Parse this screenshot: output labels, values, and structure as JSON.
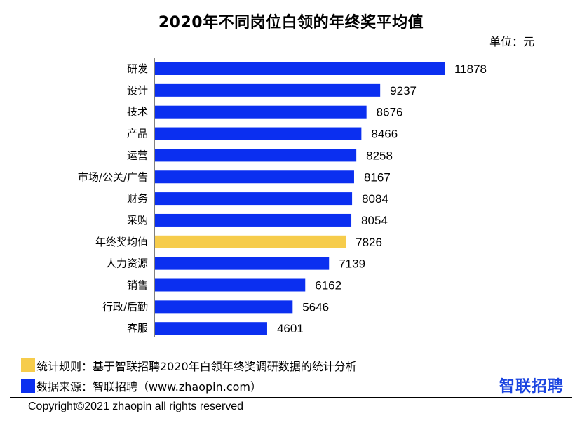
{
  "title": "2020年不同岗位白领的年终奖平均值",
  "unit": "单位：元",
  "chart_data": {
    "type": "bar",
    "orientation": "horizontal",
    "categories": [
      "研发",
      "设计",
      "技术",
      "产品",
      "运营",
      "市场/公关/广告",
      "财务",
      "采购",
      "年终奖均值",
      "人力资源",
      "销售",
      "行政/后勤",
      "客服"
    ],
    "values": [
      11878,
      9237,
      8676,
      8466,
      8258,
      8167,
      8084,
      8054,
      7826,
      7139,
      6162,
      5646,
      4601
    ],
    "highlight_category": "年终奖均值",
    "colors": {
      "bar": "#0b2ff0",
      "highlight": "#f6cc4b"
    },
    "xlim": [
      0,
      12500
    ],
    "grid": false,
    "data_labels": true
  },
  "legend": {
    "rule": {
      "text": "统计规则：基于智联招聘2020年白领年终奖调研数据的统计分析",
      "color": "#f6cc4b"
    },
    "source": {
      "text": "数据来源：智联招聘（www.zhaopin.com）",
      "color": "#0b2ff0"
    }
  },
  "brand": "智联招聘",
  "copyright": "Copyright©2021 zhaopin all rights reserved"
}
